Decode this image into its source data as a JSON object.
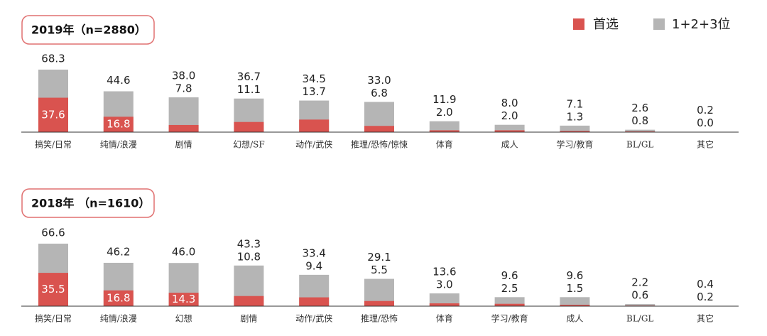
{
  "chart_data": {
    "type": "overlay_bar",
    "legend": "top-right",
    "series": [
      {
        "name": "首选",
        "color": "#d9534f"
      },
      {
        "name": "1+2+3位",
        "color": "#b5b5b5"
      }
    ],
    "panels": [
      {
        "title": "2019年（n=2880）",
        "categories": [
          "搞笑/日常",
          "纯情/浪漫",
          "剧情",
          "幻想/SF",
          "动作/武侠",
          "推理/恐怖/惊悚",
          "体育",
          "成人",
          "学习/教育",
          "BL/GL",
          "其它"
        ],
        "series_values": [
          [
            37.6,
            16.8,
            7.8,
            11.1,
            13.7,
            6.8,
            2.0,
            2.0,
            1.3,
            0.8,
            0.0
          ],
          [
            68.3,
            44.6,
            38.0,
            36.7,
            34.5,
            33.0,
            11.9,
            8.0,
            7.1,
            2.6,
            0.2
          ]
        ],
        "value_labels": [
          [
            "37.6",
            "16.8",
            "7.8",
            "11.1",
            "13.7",
            "6.8",
            "2.0",
            "2.0",
            "1.3",
            "0.8",
            "0.0"
          ],
          [
            "68.3",
            "44.6",
            "38.0",
            "36.7",
            "34.5",
            "33.0",
            "11.9",
            "8.0",
            "7.1",
            "2.6",
            "0.2"
          ]
        ]
      },
      {
        "title": "2018年 （n=1610）",
        "categories": [
          "搞笑/日常",
          "纯情/浪漫",
          "幻想",
          "剧情",
          "动作/武侠",
          "推理/恐怖",
          "体育",
          "学习/教育",
          "成人",
          "BL/GL",
          "其它"
        ],
        "series_values": [
          [
            35.5,
            16.8,
            14.3,
            10.8,
            9.4,
            5.5,
            3.0,
            2.5,
            1.5,
            0.6,
            0.2
          ],
          [
            66.6,
            46.2,
            46.0,
            43.3,
            33.4,
            29.1,
            13.6,
            9.6,
            9.6,
            2.2,
            0.4
          ]
        ],
        "value_labels": [
          [
            "35.5",
            "16.8",
            "14.3",
            "10.8",
            "9.4",
            "5.5",
            "3.0",
            "2.5",
            "1.5",
            "0.6",
            "0.2"
          ],
          [
            "66.6",
            "46.2",
            "46.0",
            "43.3",
            "33.4",
            "29.1",
            "13.6",
            "9.6",
            "9.6",
            "2.2",
            "0.4"
          ]
        ]
      }
    ]
  }
}
